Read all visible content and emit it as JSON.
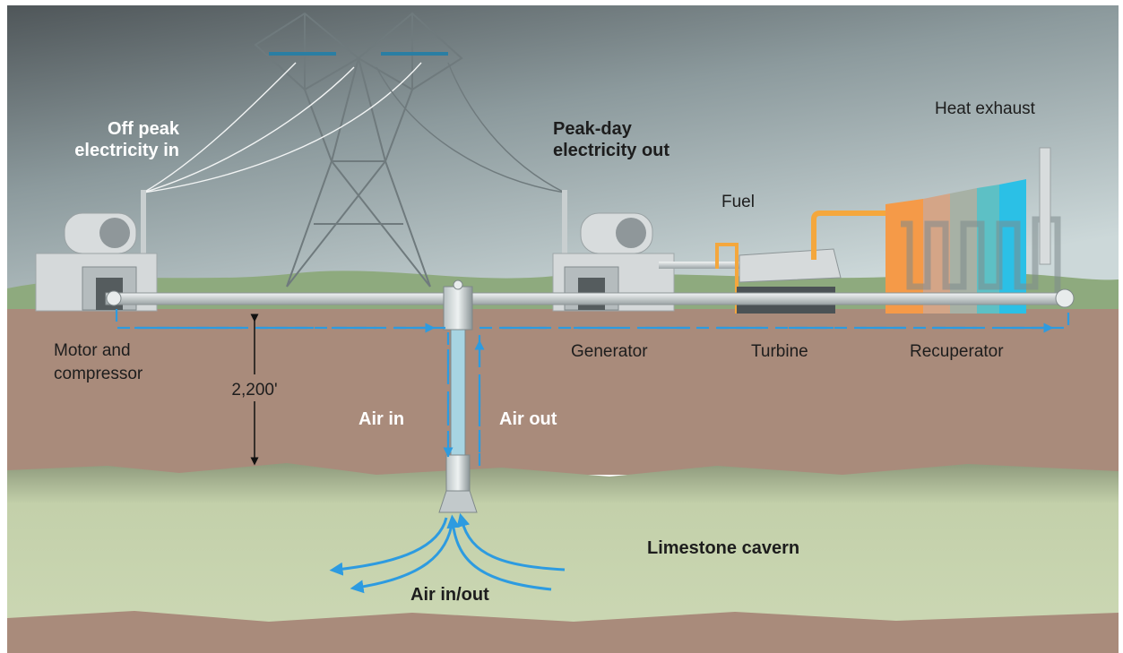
{
  "labels": {
    "off_peak_in": [
      "Off peak",
      "electricity in"
    ],
    "peak_day_out": [
      "Peak-day",
      "electricity out"
    ],
    "heat_exhaust": "Heat exhaust",
    "fuel": "Fuel",
    "motor_compressor": [
      "Motor and",
      "compressor"
    ],
    "depth": "2,200'",
    "generator": "Generator",
    "turbine": "Turbine",
    "recuperator": "Recuperator",
    "air_in": "Air in",
    "air_out": "Air out",
    "cavern": "Limestone cavern",
    "air_in_out": "Air in/out"
  }
}
